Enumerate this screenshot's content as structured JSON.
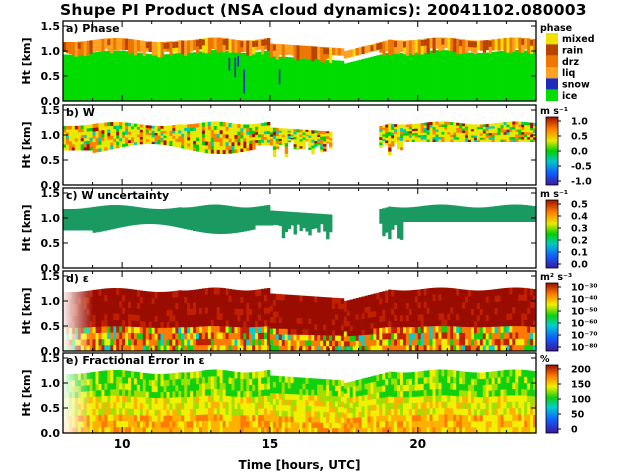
{
  "title": "Shupe PI Product (NSA cloud dynamics): 20041102.080003",
  "xlabel": "Time [hours, UTC]",
  "xticks": [
    "10",
    "15",
    "20"
  ],
  "chart_data": [
    {
      "type": "heatmap",
      "panel_label": "a) Phase",
      "ylabel": "Ht [km]",
      "yticks": [
        "0.0",
        "0.5",
        "1.0",
        "1.5"
      ],
      "xlim": [
        8.0,
        24.0
      ],
      "ylim": [
        0.0,
        1.6
      ],
      "legend_title": "phase",
      "categories": [
        {
          "label": "mixed",
          "color": "#f2e000"
        },
        {
          "label": "rain",
          "color": "#b84400"
        },
        {
          "label": "drz",
          "color": "#ee7700"
        },
        {
          "label": "liq",
          "color": "#ffa020"
        },
        {
          "label": "snow",
          "color": "#1e2ab8"
        },
        {
          "label": "ice",
          "color": "#00dc00"
        }
      ]
    },
    {
      "type": "heatmap",
      "panel_label": "b) W",
      "ylabel": "Ht [km]",
      "yticks": [
        "0.0",
        "0.5",
        "1.0",
        "1.5"
      ],
      "xlim": [
        8.0,
        24.0
      ],
      "ylim": [
        0.0,
        1.6
      ],
      "colorbar_unit": "m s⁻¹",
      "colorbar_ticks": [
        "1.0",
        "0.5",
        "0.0",
        "-0.5",
        "-1.0"
      ],
      "colorbar_range": [
        -1.0,
        1.0
      ]
    },
    {
      "type": "heatmap",
      "panel_label": "c) W uncertainty",
      "ylabel": "Ht [km]",
      "yticks": [
        "0.0",
        "0.5",
        "1.0",
        "1.5"
      ],
      "xlim": [
        8.0,
        24.0
      ],
      "ylim": [
        0.0,
        1.6
      ],
      "colorbar_unit": "m s⁻¹",
      "colorbar_ticks": [
        "0.5",
        "0.4",
        "0.3",
        "0.2",
        "0.1",
        "0.0"
      ],
      "colorbar_range": [
        0.0,
        0.5
      ]
    },
    {
      "type": "heatmap",
      "panel_label": "d) ε",
      "ylabel": "Ht [km]",
      "yticks": [
        "0.0",
        "0.5",
        "1.0",
        "1.5"
      ],
      "xlim": [
        8.0,
        24.0
      ],
      "ylim": [
        0.0,
        1.6
      ],
      "colorbar_unit": "m² s⁻³",
      "colorbar_ticks": [
        "10⁻³⁰",
        "10⁻⁴⁰",
        "10⁻⁵⁰",
        "10⁻⁶⁰",
        "10⁻⁷⁰",
        "10⁻⁸⁰"
      ],
      "colorbar_scale": "log"
    },
    {
      "type": "heatmap",
      "panel_label": "e) Fractional Error in ε",
      "ylabel": "Ht [km]",
      "yticks": [
        "0.0",
        "0.5",
        "1.0",
        "1.5"
      ],
      "xlim": [
        8.0,
        24.0
      ],
      "ylim": [
        0.0,
        1.6
      ],
      "colorbar_unit": "%",
      "colorbar_ticks": [
        "200",
        "150",
        "100",
        "50",
        "0"
      ],
      "colorbar_range": [
        0,
        200
      ]
    }
  ]
}
